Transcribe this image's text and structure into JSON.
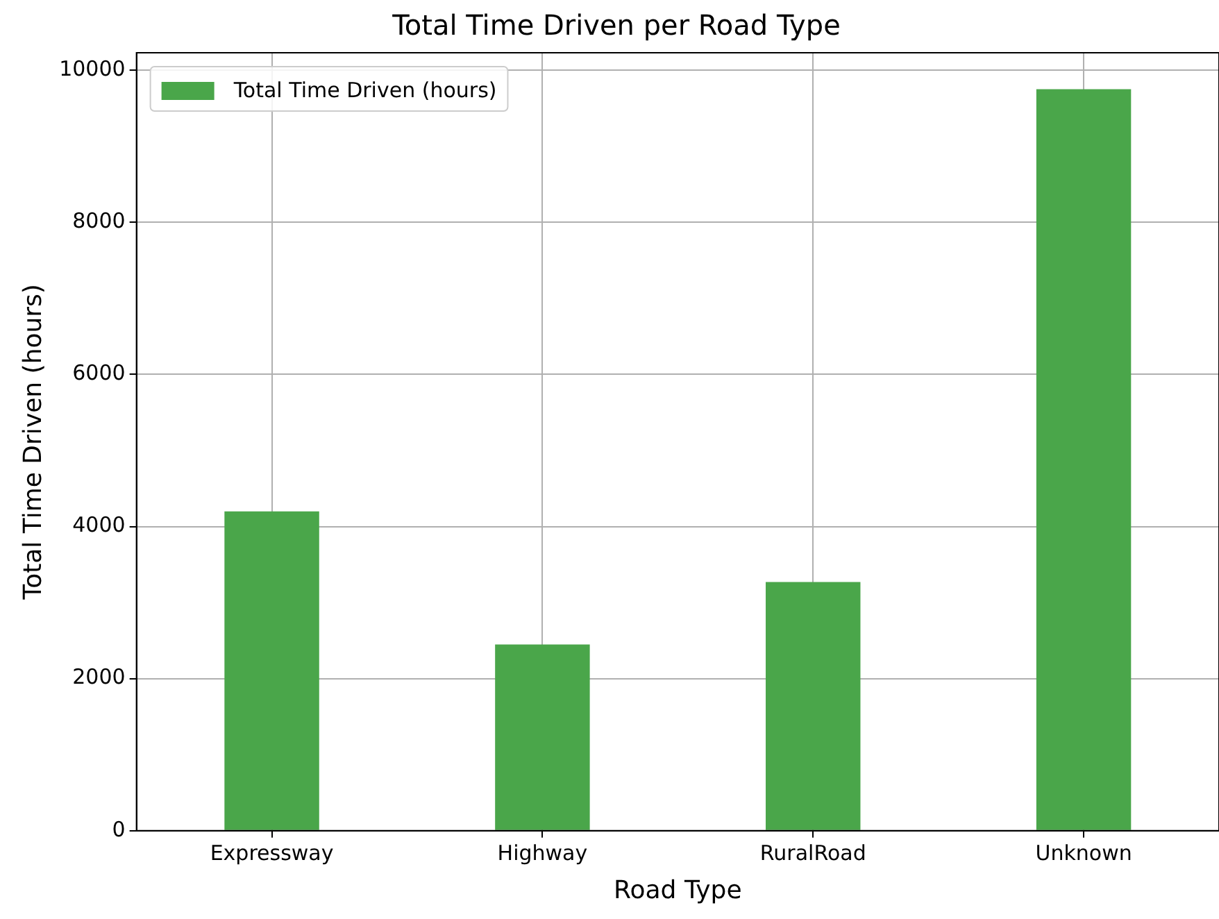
{
  "chart_data": {
    "type": "bar",
    "title": "Total Time Driven per Road Type",
    "xlabel": "Road Type",
    "ylabel": "Total Time Driven (hours)",
    "categories": [
      "Expressway",
      "Highway",
      "RuralRoad",
      "Unknown"
    ],
    "series": [
      {
        "name": "Total Time Driven (hours)",
        "color": "#4aa64a",
        "values": [
          4200,
          2450,
          3270,
          9750
        ]
      }
    ],
    "ylim": [
      0,
      10230
    ],
    "yticks": [
      0,
      2000,
      4000,
      6000,
      8000,
      10000
    ],
    "grid": true,
    "legend": "top left"
  }
}
